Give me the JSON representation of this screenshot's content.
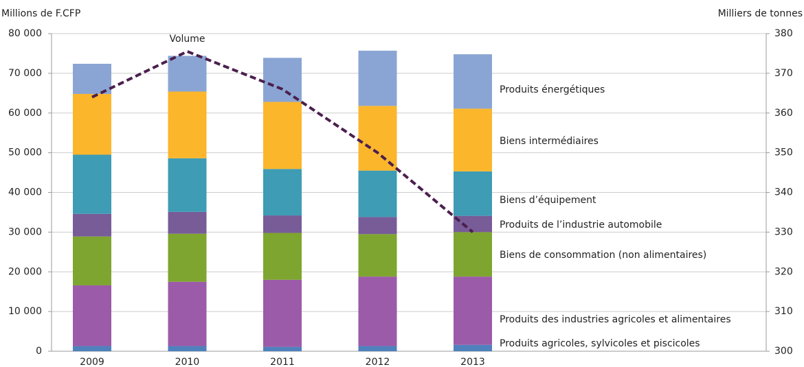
{
  "chart_data": {
    "type": "bar",
    "stacked": true,
    "y_label": "Millions de F.CFP",
    "y2_label": "Milliers de tonnes",
    "categories": [
      "2009",
      "2010",
      "2011",
      "2012",
      "2013"
    ],
    "series": [
      {
        "name": "Produits agricoles, sylvicoles et piscicoles",
        "color": "#4f81bd",
        "values": [
          1300,
          1300,
          1100,
          1300,
          1600
        ]
      },
      {
        "name": "Produits des industries agricoles et alimentaires",
        "color": "#9b5ba8",
        "values": [
          15300,
          16200,
          16900,
          17500,
          17200
        ]
      },
      {
        "name": "Biens de consommation (non alimentaires)",
        "color": "#7ea52f",
        "values": [
          12300,
          12100,
          11800,
          10700,
          11200
        ]
      },
      {
        "name": "Produits de l’industrie automobile",
        "color": "#775c98",
        "values": [
          5700,
          5500,
          4400,
          4300,
          4100
        ]
      },
      {
        "name": "Biens d’équipement",
        "color": "#3e9cb5",
        "values": [
          14900,
          13500,
          11700,
          11700,
          11200
        ]
      },
      {
        "name": "Biens intermédiaires",
        "color": "#fbb62c",
        "values": [
          15300,
          16800,
          16900,
          16300,
          15800
        ]
      },
      {
        "name": "Produits énergétiques",
        "color": "#8aa5d3",
        "values": [
          7600,
          9000,
          11100,
          13900,
          13700
        ]
      },
      {
        "name": "Volume",
        "type": "line",
        "axis": "y2",
        "color": "#4b1f4e",
        "dashed": true,
        "values": [
          364,
          375.5,
          366,
          350,
          330
        ]
      }
    ],
    "ylim": [
      0,
      80000
    ],
    "yticks": [
      0,
      {
        "value": 10000,
        "label": "10 000"
      },
      {
        "value": 20000,
        "label": "20 000"
      },
      {
        "value": 30000,
        "label": "30 000"
      },
      {
        "value": 40000,
        "label": "40 000"
      },
      {
        "value": 50000,
        "label": "50 000"
      },
      {
        "value": 60000,
        "label": "60 000"
      },
      {
        "value": 70000,
        "label": "70 000"
      },
      {
        "value": 80000,
        "label": "80 000"
      }
    ],
    "y2lim": [
      300,
      380
    ],
    "y2ticks": [
      300,
      310,
      320,
      330,
      340,
      350,
      360,
      370,
      380
    ],
    "grid": true
  }
}
